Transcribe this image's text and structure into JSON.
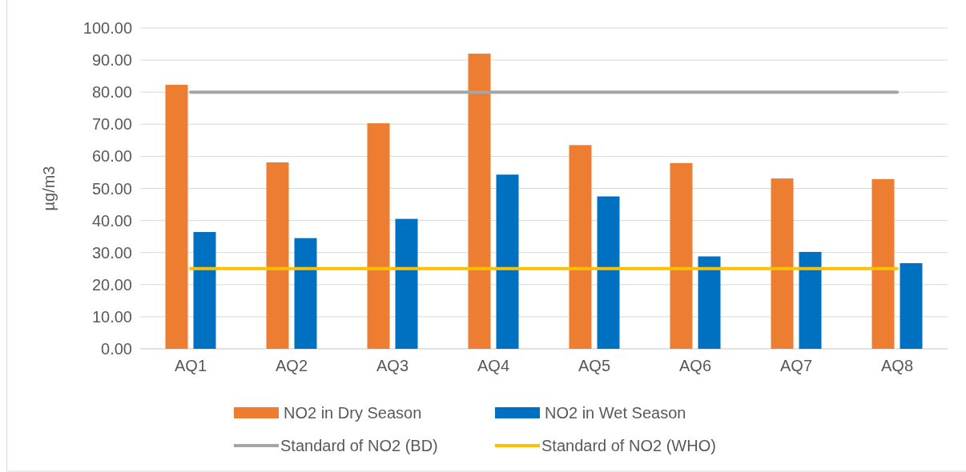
{
  "chart_data": {
    "type": "bar",
    "ylabel": "µg/m3",
    "categories": [
      "AQ1",
      "AQ2",
      "AQ3",
      "AQ4",
      "AQ5",
      "AQ6",
      "AQ7",
      "AQ8"
    ],
    "series": [
      {
        "name": "NO2 in Dry Season",
        "color": "#ed7d31",
        "values": [
          82.3,
          58.1,
          70.3,
          92.0,
          63.5,
          57.9,
          53.1,
          52.9
        ]
      },
      {
        "name": "NO2 in Wet Season",
        "color": "#0070c0",
        "values": [
          36.4,
          34.5,
          40.5,
          54.3,
          47.5,
          28.8,
          30.2,
          26.7
        ]
      },
      {
        "name": "Standard of NO2 (BD)",
        "type": "line",
        "color": "#a5a5a5",
        "values": [
          80,
          80,
          80,
          80,
          80,
          80,
          80,
          80
        ]
      },
      {
        "name": "Standard of NO2 (WHO)",
        "type": "line",
        "color": "#ffc000",
        "values": [
          25,
          25,
          25,
          25,
          25,
          25,
          25,
          25
        ]
      }
    ],
    "ylim": [
      0,
      100
    ],
    "yticks": [
      {
        "value": 0,
        "label": "0.00"
      },
      {
        "value": 10,
        "label": "10.00"
      },
      {
        "value": 20,
        "label": "20.00"
      },
      {
        "value": 30,
        "label": "30.00"
      },
      {
        "value": 40,
        "label": "40.00"
      },
      {
        "value": 50,
        "label": "50.00"
      },
      {
        "value": 60,
        "label": "60.00"
      },
      {
        "value": 70,
        "label": "70.00"
      },
      {
        "value": 80,
        "label": "80.00"
      },
      {
        "value": 90,
        "label": "90.00"
      },
      {
        "value": 100,
        "label": "100.00"
      }
    ],
    "grid": "y",
    "legend": "bottom"
  }
}
